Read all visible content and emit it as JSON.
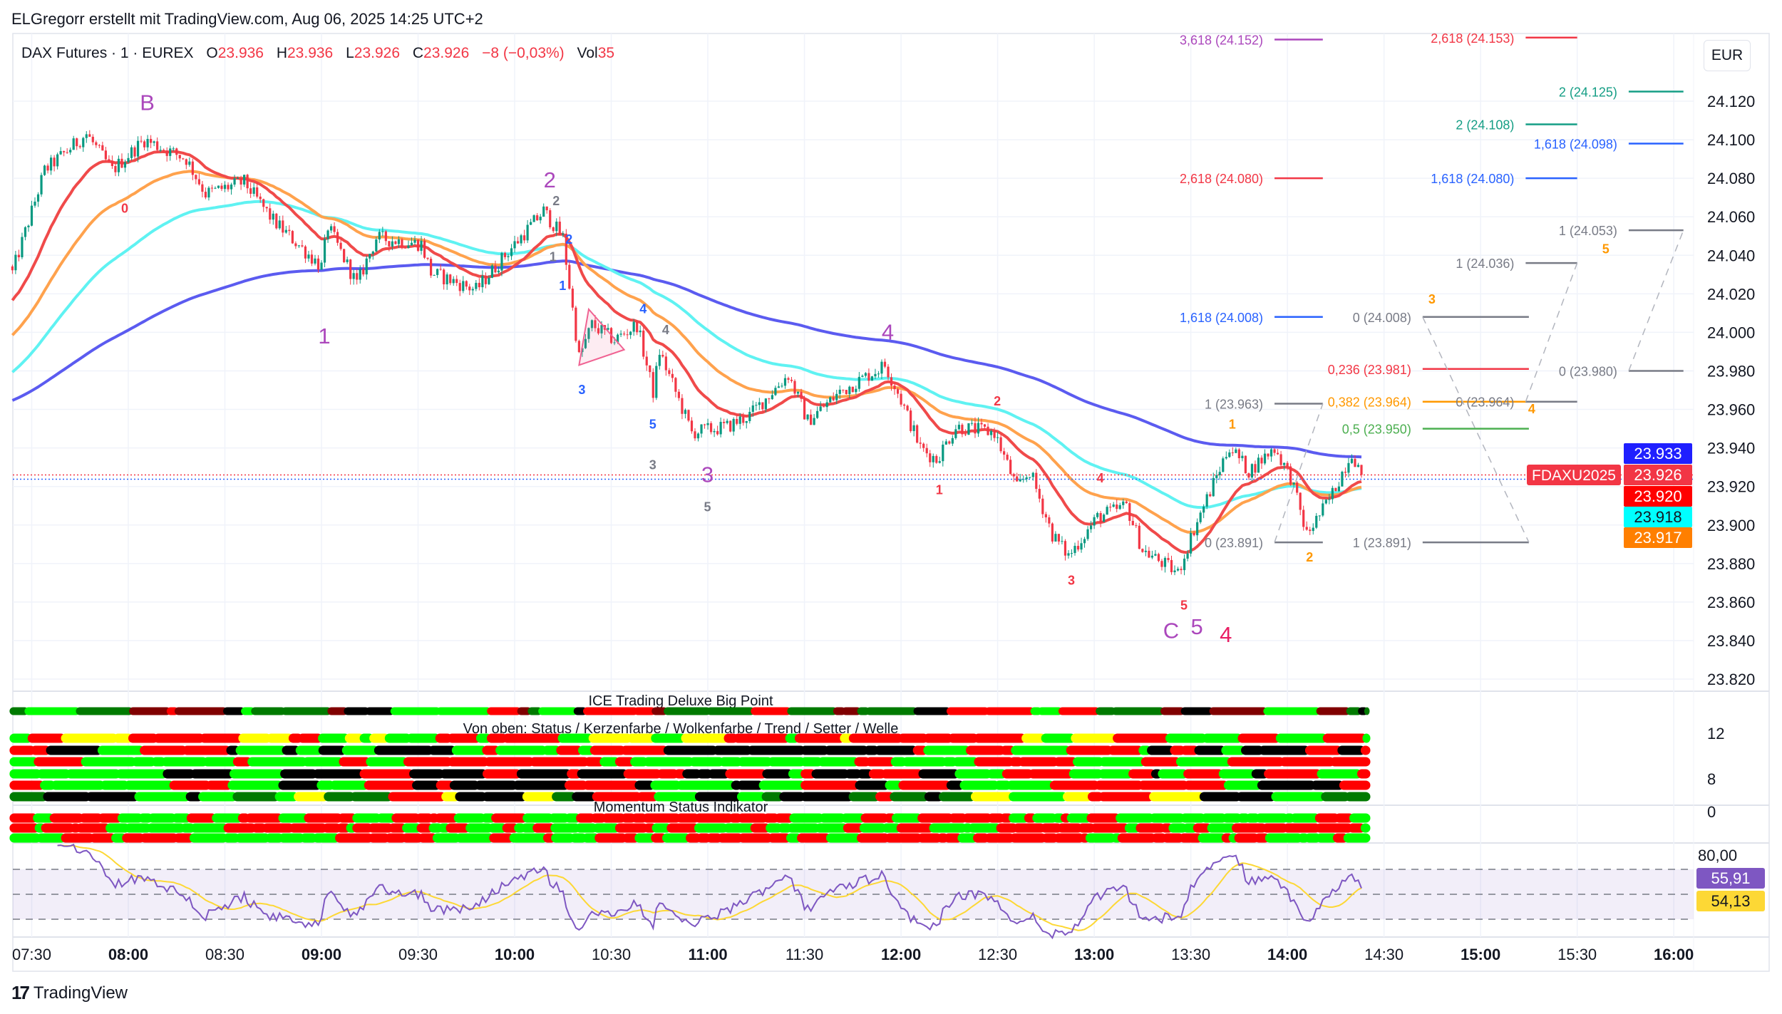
{
  "header": {
    "title": "ELGregorr erstellt mit TradingView.com, Aug 06, 2025 14:25 UTC+2"
  },
  "legend": {
    "symbol": "DAX Futures · 1 · EUREX",
    "o_label": "O",
    "o": "23.936",
    "h_label": "H",
    "h": "23.936",
    "l_label": "L",
    "l": "23.926",
    "c_label": "C",
    "c": "23.926",
    "change": "−8 (−0,03%)",
    "vol_label": "Vol",
    "vol": "35"
  },
  "currency_button": "EUR",
  "branding": {
    "logo_mark": "17",
    "name": "TradingView"
  },
  "panes": {
    "ice_title": "ICE Trading Deluxe Big Point",
    "von_oben_title": "Von oben: Status / Kerzenfarbe / Wolkenfarbe / Trend / Setter / Welle",
    "momentum_title": "Momentum Status Indikator",
    "ice_axis": [
      "12",
      "8",
      "0"
    ],
    "rsi_axis": "80,00",
    "rsi_value": {
      "text": "55,91",
      "color": "#7e57c2"
    },
    "rsi_ma_value": {
      "text": "54,13",
      "color": "#fdd835"
    }
  },
  "price_tags": [
    {
      "text": "23.933",
      "price": 23.933,
      "bg": "#1f1fff",
      "fg": "#ffffff"
    },
    {
      "text": "23.926",
      "price": 23.926,
      "bg": "#f23645",
      "fg": "#ffffff",
      "symbol": "FDAXU2025"
    },
    {
      "text": "23.920",
      "price": 23.92,
      "bg": "#ff0000",
      "fg": "#ffffff"
    },
    {
      "text": "23.918",
      "price": 23.918,
      "bg": "#00ffff",
      "fg": "#131722"
    },
    {
      "text": "23.917",
      "price": 23.917,
      "bg": "#ff7f00",
      "fg": "#ffffff"
    }
  ],
  "chart_data": {
    "type": "candlestick",
    "title": "DAX Futures · 1 · EUREX",
    "ylim": [
      23.81,
      24.165
    ],
    "yticks": [
      "24.120",
      "24.100",
      "24.080",
      "24.060",
      "24.040",
      "24.020",
      "24.000",
      "23.980",
      "23.960",
      "23.940",
      "23.920",
      "23.900",
      "23.880",
      "23.860",
      "23.840",
      "23.820"
    ],
    "xticks": [
      {
        "t": "07:30",
        "bold": false
      },
      {
        "t": "08:00",
        "bold": true
      },
      {
        "t": "08:30",
        "bold": false
      },
      {
        "t": "09:00",
        "bold": true
      },
      {
        "t": "09:30",
        "bold": false
      },
      {
        "t": "10:00",
        "bold": true
      },
      {
        "t": "10:30",
        "bold": false
      },
      {
        "t": "11:00",
        "bold": true
      },
      {
        "t": "11:30",
        "bold": false
      },
      {
        "t": "12:00",
        "bold": true
      },
      {
        "t": "12:30",
        "bold": false
      },
      {
        "t": "13:00",
        "bold": true
      },
      {
        "t": "13:30",
        "bold": false
      },
      {
        "t": "14:00",
        "bold": true
      },
      {
        "t": "14:30",
        "bold": false
      },
      {
        "t": "15:00",
        "bold": true
      },
      {
        "t": "15:30",
        "bold": false
      },
      {
        "t": "16:00",
        "bold": true
      }
    ],
    "grid": true,
    "up_color": "#089981",
    "down_color": "#f23645",
    "price_path": [
      [
        "07:24",
        24.031
      ],
      [
        "07:34",
        24.084
      ],
      [
        "07:47",
        24.103
      ],
      [
        "07:55",
        24.084
      ],
      [
        "08:05",
        24.1
      ],
      [
        "08:18",
        24.09
      ],
      [
        "08:24",
        24.072
      ],
      [
        "08:36",
        24.078
      ],
      [
        "08:45",
        24.058
      ],
      [
        "09:00",
        24.034
      ],
      [
        "09:02",
        24.055
      ],
      [
        "09:11",
        24.025
      ],
      [
        "09:17",
        24.049
      ],
      [
        "09:31",
        24.046
      ],
      [
        "09:34",
        24.031
      ],
      [
        "09:48",
        24.022
      ],
      [
        "09:57",
        24.04
      ],
      [
        "10:09",
        24.063
      ],
      [
        "10:15",
        24.049
      ],
      [
        "10:20",
        23.987
      ],
      [
        "10:24",
        24.004
      ],
      [
        "10:31",
        23.996
      ],
      [
        "10:38",
        24.004
      ],
      [
        "10:43",
        23.969
      ],
      [
        "10:45",
        23.99
      ],
      [
        "10:55",
        23.948
      ],
      [
        "11:06",
        23.951
      ],
      [
        "11:13",
        23.957
      ],
      [
        "11:25",
        23.978
      ],
      [
        "11:31",
        23.954
      ],
      [
        "11:41",
        23.969
      ],
      [
        "11:55",
        23.983
      ],
      [
        "11:59",
        23.969
      ],
      [
        "12:06",
        23.94
      ],
      [
        "12:11",
        23.934
      ],
      [
        "12:17",
        23.951
      ],
      [
        "12:29",
        23.948
      ],
      [
        "12:36",
        23.919
      ],
      [
        "12:40",
        23.928
      ],
      [
        "12:47",
        23.895
      ],
      [
        "12:52",
        23.884
      ],
      [
        "13:01",
        23.904
      ],
      [
        "13:10",
        23.91
      ],
      [
        "13:15",
        23.887
      ],
      [
        "13:26",
        23.875
      ],
      [
        "13:31",
        23.898
      ],
      [
        "13:42",
        23.941
      ],
      [
        "13:48",
        23.928
      ],
      [
        "13:56",
        23.94
      ],
      [
        "14:01",
        23.925
      ],
      [
        "14:06",
        23.895
      ],
      [
        "14:13",
        23.913
      ],
      [
        "14:20",
        23.938
      ],
      [
        "14:23",
        23.926
      ]
    ],
    "moving_averages": [
      {
        "name": "MA slow",
        "length": 200,
        "start": 23.964,
        "color": "#5b5bf0",
        "last": 23.933
      },
      {
        "name": "MA cyan",
        "length": 80,
        "start": 23.978,
        "color": "#5ff2f2",
        "last": 23.918
      },
      {
        "name": "MA orange",
        "length": 45,
        "start": 23.997,
        "color": "#ffa24d",
        "last": 23.917
      },
      {
        "name": "MA red",
        "length": 20,
        "start": 24.015,
        "color": "#f04a4a",
        "last": 23.92
      }
    ],
    "fib_levels": [
      {
        "label": "3,618 (24.152)",
        "price": 24.152,
        "color": "#ab47bc",
        "from": "13:56",
        "to": "14:11"
      },
      {
        "label": "2,618 (24.153)",
        "price": 24.153,
        "color": "#f23645",
        "from": "15:14",
        "to": "15:30"
      },
      {
        "label": "2 (24.125)",
        "price": 24.125,
        "color": "#159e85",
        "from": "15:46",
        "to": "16:03"
      },
      {
        "label": "2 (24.108)",
        "price": 24.108,
        "color": "#159e85",
        "from": "15:14",
        "to": "15:30"
      },
      {
        "label": "1,618 (24.098)",
        "price": 24.098,
        "color": "#2962ff",
        "from": "15:46",
        "to": "16:03"
      },
      {
        "label": "2,618 (24.080)",
        "price": 24.08,
        "color": "#f23645",
        "from": "13:56",
        "to": "14:11"
      },
      {
        "label": "1,618 (24.080)",
        "price": 24.08,
        "color": "#2962ff",
        "from": "15:14",
        "to": "15:30"
      },
      {
        "label": "1 (24.053)",
        "price": 24.053,
        "color": "#787b86",
        "from": "15:46",
        "to": "16:03"
      },
      {
        "label": "1 (24.036)",
        "price": 24.036,
        "color": "#787b86",
        "from": "15:14",
        "to": "15:30"
      },
      {
        "label": "1,618 (24.008)",
        "price": 24.008,
        "color": "#2962ff",
        "from": "13:56",
        "to": "14:11"
      },
      {
        "label": "0 (24.008)",
        "price": 24.008,
        "color": "#787b86",
        "from": "14:42",
        "to": "15:15"
      },
      {
        "label": "0,236 (23.981)",
        "price": 23.981,
        "color": "#f23645",
        "from": "14:42",
        "to": "15:15"
      },
      {
        "label": "0 (23.980)",
        "price": 23.98,
        "color": "#787b86",
        "from": "15:46",
        "to": "16:03"
      },
      {
        "label": "1 (23.963)",
        "price": 23.963,
        "color": "#787b86",
        "from": "13:56",
        "to": "14:11"
      },
      {
        "label": "0,382 (23.964)",
        "price": 23.964,
        "color": "#ff9800",
        "from": "14:42",
        "to": "15:15"
      },
      {
        "label": "0 (23.964)",
        "price": 23.964,
        "color": "#787b86",
        "from": "15:14",
        "to": "15:30"
      },
      {
        "label": "0,5 (23.950)",
        "price": 23.95,
        "color": "#4caf50",
        "from": "14:42",
        "to": "15:15"
      },
      {
        "label": "0 (23.891)",
        "price": 23.891,
        "color": "#787b86",
        "from": "13:56",
        "to": "14:11"
      },
      {
        "label": "1 (23.891)",
        "price": 23.891,
        "color": "#787b86",
        "from": "14:42",
        "to": "15:15"
      }
    ],
    "dashed_connectors": [
      [
        [
          "13:56",
          23.891
        ],
        [
          "14:11",
          23.963
        ]
      ],
      [
        [
          "14:42",
          24.008
        ],
        [
          "15:15",
          23.891
        ]
      ],
      [
        [
          "15:14",
          23.964
        ],
        [
          "15:30",
          24.036
        ]
      ],
      [
        [
          "15:46",
          23.98
        ],
        [
          "16:03",
          24.053
        ]
      ]
    ],
    "triangle": {
      "points": [
        [
          "10:23",
          24.012
        ],
        [
          "10:34",
          23.991
        ],
        [
          "10:20",
          23.983
        ]
      ],
      "color": "#f06292"
    },
    "wave_labels": [
      {
        "text": "B",
        "t": "08:05",
        "p": 24.119,
        "color": "#ab47bc",
        "big": true
      },
      {
        "text": "0",
        "t": "07:58",
        "p": 24.065,
        "color": "#f23645",
        "big": false
      },
      {
        "text": "1",
        "t": "09:00",
        "p": 23.998,
        "color": "#ab47bc",
        "big": true
      },
      {
        "text": "2",
        "t": "10:10",
        "p": 24.079,
        "color": "#ab47bc",
        "big": true
      },
      {
        "text": "2",
        "t": "10:12",
        "p": 24.069,
        "color": "#787b86",
        "big": false
      },
      {
        "text": "1",
        "t": "10:11",
        "p": 24.04,
        "color": "#787b86",
        "big": false
      },
      {
        "text": "2",
        "t": "10:16",
        "p": 24.049,
        "color": "#2962ff",
        "big": false
      },
      {
        "text": "1",
        "t": "10:14",
        "p": 24.025,
        "color": "#2962ff",
        "big": false
      },
      {
        "text": "4",
        "t": "10:39",
        "p": 24.013,
        "color": "#2962ff",
        "big": false
      },
      {
        "text": "4",
        "t": "10:46",
        "p": 24.002,
        "color": "#787b86",
        "big": false
      },
      {
        "text": "3",
        "t": "10:20",
        "p": 23.971,
        "color": "#2962ff",
        "big": false
      },
      {
        "text": "5",
        "t": "10:42",
        "p": 23.953,
        "color": "#2962ff",
        "big": false
      },
      {
        "text": "3",
        "t": "10:42",
        "p": 23.932,
        "color": "#787b86",
        "big": false
      },
      {
        "text": "3",
        "t": "10:59",
        "p": 23.926,
        "color": "#ab47bc",
        "big": true
      },
      {
        "text": "5",
        "t": "10:59",
        "p": 23.91,
        "color": "#787b86",
        "big": false
      },
      {
        "text": "4",
        "t": "11:55",
        "p": 24.0,
        "color": "#ab47bc",
        "big": true
      },
      {
        "text": "2",
        "t": "12:29",
        "p": 23.965,
        "color": "#f23645",
        "big": false
      },
      {
        "text": "1",
        "t": "12:11",
        "p": 23.919,
        "color": "#f23645",
        "big": false
      },
      {
        "text": "4",
        "t": "13:01",
        "p": 23.925,
        "color": "#f23645",
        "big": false
      },
      {
        "text": "3",
        "t": "12:52",
        "p": 23.872,
        "color": "#f23645",
        "big": false
      },
      {
        "text": "5",
        "t": "13:27",
        "p": 23.859,
        "color": "#f23645",
        "big": false
      },
      {
        "text": "C",
        "t": "13:23",
        "p": 23.845,
        "color": "#ab47bc",
        "big": true
      },
      {
        "text": "5",
        "t": "13:31",
        "p": 23.847,
        "color": "#ab47bc",
        "big": true
      },
      {
        "text": "4",
        "t": "13:40",
        "p": 23.843,
        "color": "#e91e63",
        "big": true
      },
      {
        "text": "1",
        "t": "13:42",
        "p": 23.953,
        "color": "#ff9800",
        "big": false
      },
      {
        "text": "2",
        "t": "14:06",
        "p": 23.884,
        "color": "#ff9800",
        "big": false
      },
      {
        "text": "3",
        "t": "14:44",
        "p": 24.018,
        "color": "#ff9800",
        "big": false
      },
      {
        "text": "4",
        "t": "15:15",
        "p": 23.961,
        "color": "#ff9800",
        "big": false
      },
      {
        "text": "5",
        "t": "15:38",
        "p": 24.044,
        "color": "#ff9800",
        "big": false
      }
    ],
    "indicator_rows": [
      {
        "name": "ice-big-point",
        "colors": [
          "#00ff00",
          "#000000",
          "#ff0000",
          "#800000",
          "#007a00"
        ]
      },
      {
        "name": "status",
        "colors": [
          "#ff0000",
          "#00ff00",
          "#ffff00"
        ]
      },
      {
        "name": "kerzenfarbe",
        "colors": [
          "#ff0000",
          "#00ff00",
          "#000000"
        ]
      },
      {
        "name": "wolkenfarbe",
        "colors": [
          "#ff0000",
          "#00ff00"
        ]
      },
      {
        "name": "trend",
        "colors": [
          "#ff0000",
          "#00ff00",
          "#000000"
        ]
      },
      {
        "name": "setter",
        "colors": [
          "#ff0000",
          "#00ff00",
          "#000000"
        ]
      },
      {
        "name": "welle",
        "colors": [
          "#ff0000",
          "#00ff00",
          "#000000",
          "#ffff00",
          "#007a00"
        ]
      },
      {
        "name": "momentum-1",
        "colors": [
          "#ff0000",
          "#00ff00"
        ]
      },
      {
        "name": "momentum-2",
        "colors": [
          "#ff0000",
          "#00ff00"
        ]
      },
      {
        "name": "momentum-3",
        "colors": [
          "#ff0000",
          "#00ff00"
        ]
      }
    ],
    "rsi": {
      "upper": 70,
      "middle": 50,
      "lower": 30,
      "line_color": "#7e57c2",
      "ma_color": "#fdd835",
      "last": 55.91,
      "ma_last": 54.13
    }
  }
}
